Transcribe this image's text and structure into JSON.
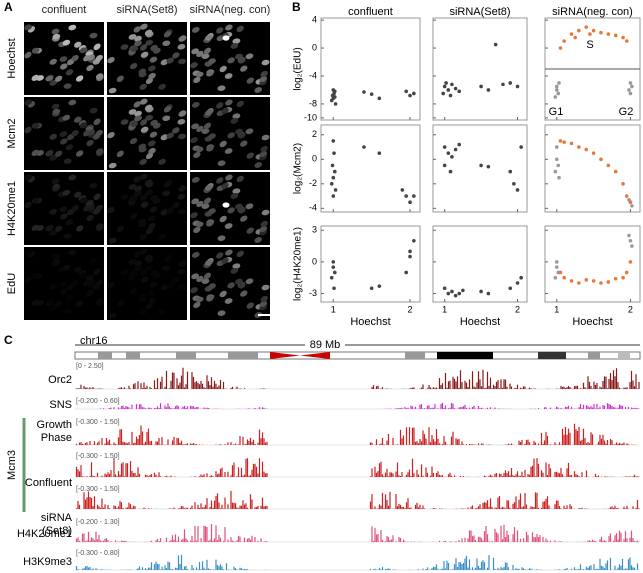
{
  "panels": {
    "A": {
      "label": "A",
      "columns": [
        "confluent",
        "siRNA(Set8)",
        "siRNA(neg. con)"
      ],
      "rows": [
        "Hoechst",
        "Mcm2",
        "H4K20me1",
        "EdU"
      ]
    },
    "B": {
      "label": "B",
      "columns": [
        "confluent",
        "siRNA(Set8)",
        "siRNA(neg. con)"
      ],
      "x_label": "Hoechst",
      "xlim": [
        0.84,
        2.13
      ],
      "xticks": [
        1,
        2
      ],
      "annotations": [
        "S",
        "G1",
        "G2"
      ],
      "rows": [
        {
          "y_label": "log₂(EdU)",
          "ylim": [
            -10.3,
            4.3
          ],
          "yticks": [
            4,
            0,
            -4,
            -8,
            -10
          ],
          "plots": [
            {
              "series": [
                {
                  "color": "#444444",
                  "x": [
                    1,
                    1.02,
                    0.98,
                    1.01,
                    1.03,
                    0.99,
                    1.0,
                    1.02,
                    1.4,
                    1.5,
                    1.6,
                    1.95,
                    2.0,
                    2.05
                  ],
                  "y": [
                    -6,
                    -7,
                    -7.5,
                    -6.5,
                    -8,
                    -6.8,
                    -7.2,
                    -6.2,
                    -6.3,
                    -6.6,
                    -7.2,
                    -6.2,
                    -6.8,
                    -6.5
                  ]
                }
              ]
            },
            {
              "series": [
                {
                  "color": "#444444",
                  "x": [
                    1,
                    1.05,
                    1.1,
                    0.98,
                    1.15,
                    1.2,
                    1.02,
                    1.08,
                    1.5,
                    1.6,
                    1.8,
                    1.9,
                    2.0,
                    1.7
                  ],
                  "y": [
                    -5.5,
                    -6,
                    -5.2,
                    -6.5,
                    -5.8,
                    -6.2,
                    -5,
                    -6.8,
                    -5.5,
                    -6,
                    -5.2,
                    -5,
                    -5.5,
                    0.5
                  ]
                }
              ]
            },
            {
              "series": [
                {
                  "color": "#999999",
                  "x": [
                    1,
                    1.02,
                    0.98,
                    1.03,
                    1.0,
                    2.0,
                    1.98,
                    2.02,
                    2.0
                  ],
                  "y": [
                    -5.5,
                    -6.5,
                    -7,
                    -5,
                    -6,
                    -5,
                    -6,
                    -5.5,
                    -6.5
                  ]
                },
                {
                  "color": "#e8773a",
                  "x": [
                    1.05,
                    1.1,
                    1.2,
                    1.3,
                    1.4,
                    1.5,
                    1.6,
                    1.7,
                    1.8,
                    1.9,
                    1.95,
                    1.25,
                    1.45
                  ],
                  "y": [
                    0,
                    1,
                    2,
                    2.5,
                    3,
                    2.5,
                    2.2,
                    2,
                    1.8,
                    1.5,
                    1,
                    1.5,
                    2
                  ]
                }
              ]
            }
          ]
        },
        {
          "y_label": "log₂(Mcm2)",
          "ylim": [
            -4.3,
            2.8
          ],
          "yticks": [
            2,
            0,
            -2,
            -4
          ],
          "plots": [
            {
              "series": [
                {
                  "color": "#444444",
                  "x": [
                    1,
                    1.01,
                    0.99,
                    1.02,
                    1.0,
                    0.98,
                    1.03,
                    1.0,
                    1.4,
                    1.6,
                    1.9,
                    1.95,
                    2.0,
                    2.05
                  ],
                  "y": [
                    1.5,
                    0.5,
                    -0.5,
                    -1,
                    -1.5,
                    -2,
                    -2.5,
                    -3,
                    1,
                    0.5,
                    -2.5,
                    -3,
                    -3.5,
                    -3
                  ]
                }
              ]
            },
            {
              "series": [
                {
                  "color": "#444444",
                  "x": [
                    1,
                    1.05,
                    1.1,
                    1.15,
                    1.2,
                    1.0,
                    1.08,
                    1.5,
                    1.6,
                    1.9,
                    1.95,
                    2.0,
                    2.05
                  ],
                  "y": [
                    1,
                    0.5,
                    0.2,
                    0.8,
                    1.2,
                    -0.5,
                    -1,
                    -0.5,
                    -0.6,
                    -1,
                    -2,
                    -2.5,
                    1
                  ]
                }
              ]
            },
            {
              "series": [
                {
                  "color": "#999999",
                  "x": [
                    1,
                    1.0,
                    1.02,
                    0.98,
                    1.03,
                    1.98,
                    2.0,
                    2.02
                  ],
                  "y": [
                    1,
                    0,
                    -0.5,
                    -1,
                    -1.5,
                    -3.3,
                    -3.5,
                    -3.8
                  ]
                },
                {
                  "color": "#e8773a",
                  "x": [
                    1.05,
                    1.1,
                    1.2,
                    1.3,
                    1.4,
                    1.5,
                    1.6,
                    1.7,
                    1.8,
                    1.9,
                    1.95,
                    2.0
                  ],
                  "y": [
                    1.5,
                    1.4,
                    1.3,
                    1.0,
                    0.8,
                    0.5,
                    0,
                    -0.5,
                    -1,
                    -2,
                    -3,
                    -3.5
                  ]
                }
              ]
            }
          ]
        },
        {
          "y_label": "log₂(H4K20me1)",
          "ylim": [
            -3.8,
            3.4
          ],
          "yticks": [
            3,
            0,
            -3
          ],
          "plots": [
            {
              "series": [
                {
                  "color": "#444444",
                  "x": [
                    1,
                    1.0,
                    1.02,
                    0.98,
                    1.01,
                    1.5,
                    1.6,
                    1.95,
                    2.0,
                    2.05,
                    2.0
                  ],
                  "y": [
                    0,
                    -0.5,
                    -1,
                    -1.5,
                    -2.5,
                    -2.5,
                    -2.3,
                    -1,
                    1,
                    2,
                    0.5
                  ]
                }
              ]
            },
            {
              "series": [
                {
                  "color": "#444444",
                  "x": [
                    1,
                    1.05,
                    1.1,
                    1.15,
                    1.2,
                    1.25,
                    1.5,
                    1.6,
                    1.9,
                    2.0,
                    2.05
                  ],
                  "y": [
                    -2.5,
                    -3,
                    -2.8,
                    -3.2,
                    -3,
                    -2.7,
                    -2.8,
                    -3,
                    -2.5,
                    -2,
                    -1.5
                  ]
                }
              ]
            },
            {
              "series": [
                {
                  "color": "#999999",
                  "x": [
                    1,
                    1.0,
                    1.02,
                    0.98,
                    1.98,
                    2.0,
                    2.02
                  ],
                  "y": [
                    0,
                    -0.5,
                    -1,
                    -1.5,
                    2.5,
                    2,
                    1.5
                  ]
                },
                {
                  "color": "#e8773a",
                  "x": [
                    1.05,
                    1.1,
                    1.2,
                    1.3,
                    1.4,
                    1.5,
                    1.6,
                    1.7,
                    1.8,
                    1.9,
                    1.95,
                    2.0
                  ],
                  "y": [
                    -1,
                    -1.5,
                    -1.8,
                    -2,
                    -1.7,
                    -1.8,
                    -2,
                    -1.9,
                    -1.6,
                    -1.5,
                    -1,
                    0
                  ]
                }
              ]
            }
          ]
        }
      ]
    },
    "C": {
      "label": "C",
      "chromosome": "chr16",
      "size": "89 Mb",
      "group_label": "Mcm3",
      "tracks": [
        {
          "name": "Orc2",
          "range": "[0 - 2.50]",
          "color": "#8b1a1a"
        },
        {
          "name": "SNS",
          "range": "[-0.200 - 0.60]",
          "color": "#cc33cc"
        },
        {
          "name": "Growth Phase",
          "range": "[-0.300 - 1.50]",
          "color": "#cc2222",
          "group": true
        },
        {
          "name": "Confluent",
          "range": "[-0.300 - 1.50]",
          "color": "#cc2222",
          "group": true
        },
        {
          "name": "siRNA (Set8)",
          "range": "[-0.300 - 1.50]",
          "color": "#cc2222",
          "group": true
        },
        {
          "name": "H4K20me1",
          "range": "[-0.200 - 1.30]",
          "color": "#e0507a"
        },
        {
          "name": "H3K9me3",
          "range": "[-0.300 - 0.80]",
          "color": "#3a8fc8"
        }
      ]
    }
  }
}
